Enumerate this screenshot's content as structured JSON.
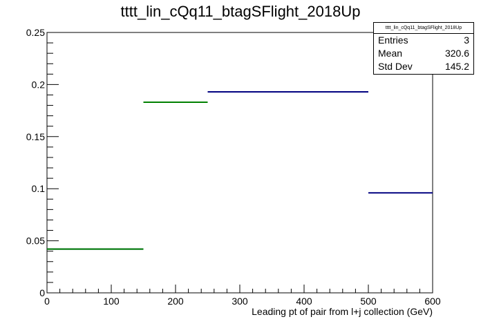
{
  "title": "tttt_lin_cQq11_btagSFlight_2018Up",
  "stats": {
    "name": "tttt_lin_cQq11_btagSFlight_2018Up",
    "rows": [
      {
        "label": "Entries",
        "value": "3"
      },
      {
        "label": "Mean",
        "value": "320.6"
      },
      {
        "label": "Std Dev",
        "value": "145.2"
      }
    ]
  },
  "colors": {
    "navy": "#000080",
    "green": "#008000"
  },
  "chart_data": {
    "type": "line",
    "title": "tttt_lin_cQq11_btagSFlight_2018Up",
    "xlabel": "Leading pt of pair from l+j collection (GeV)",
    "ylabel": "",
    "xlim": [
      0,
      600
    ],
    "ylim": [
      0,
      0.25
    ],
    "xticks": [
      "0",
      "100",
      "200",
      "300",
      "400",
      "500",
      "600"
    ],
    "yticks": [
      "0",
      "0.05",
      "0.1",
      "0.15",
      "0.2",
      "0.25"
    ],
    "grid": false,
    "series": [
      {
        "color": "#000080",
        "bins": [
          {
            "x0": 0,
            "x1": 150,
            "y": 0.042
          },
          {
            "x0": 150,
            "x1": 250,
            "y": 0.183
          },
          {
            "x0": 250,
            "x1": 500,
            "y": 0.193
          },
          {
            "x0": 500,
            "x1": 600,
            "y": 0.096
          }
        ]
      },
      {
        "color": "#008000",
        "bins": [
          {
            "x0": 0,
            "x1": 150,
            "y": 0.042
          },
          {
            "x0": 150,
            "x1": 250,
            "y": 0.183
          }
        ]
      }
    ]
  }
}
